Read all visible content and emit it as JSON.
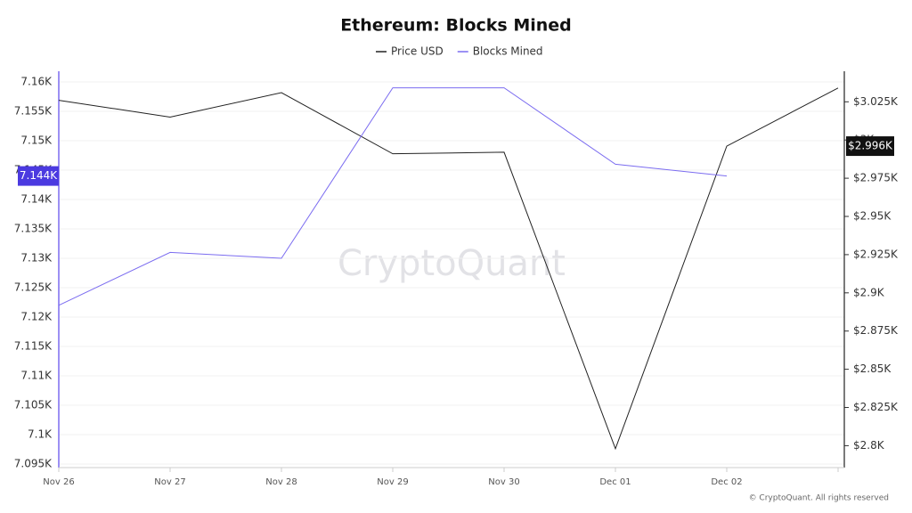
{
  "chart_data": {
    "type": "line",
    "title": "Ethereum: Blocks Mined",
    "categories": [
      "Nov 26",
      "Nov 27",
      "Nov 28",
      "Nov 29",
      "Nov 30",
      "Dec 01",
      "Dec 02",
      null
    ],
    "series": [
      {
        "name": "Price USD",
        "color": "#222222",
        "axis": "y2",
        "values": [
          3026,
          3015,
          3031,
          2991,
          2992,
          2798,
          2996,
          3034
        ]
      },
      {
        "name": "Blocks Mined",
        "color": "#7b6cf0",
        "values": [
          7122,
          7131,
          7130,
          7159,
          7159,
          7146,
          7144,
          null
        ]
      }
    ],
    "ylim": [
      7095,
      7160
    ],
    "yticks": [
      {
        "value": 7095,
        "label": "7.095K"
      },
      {
        "value": 7100,
        "label": "7.1K"
      },
      {
        "value": 7105,
        "label": "7.105K"
      },
      {
        "value": 7110,
        "label": "7.11K"
      },
      {
        "value": 7115,
        "label": "7.115K"
      },
      {
        "value": 7120,
        "label": "7.12K"
      },
      {
        "value": 7125,
        "label": "7.125K"
      },
      {
        "value": 7130,
        "label": "7.13K"
      },
      {
        "value": 7135,
        "label": "7.135K"
      },
      {
        "value": 7140,
        "label": "7.14K"
      },
      {
        "value": 7145,
        "label": "7.145K"
      },
      {
        "value": 7150,
        "label": "7.15K"
      },
      {
        "value": 7155,
        "label": "7.155K"
      },
      {
        "value": 7160,
        "label": "7.16K"
      }
    ],
    "y2lim": [
      2788,
      3038
    ],
    "y2ticks": [
      {
        "value": 2800,
        "label": "$2.8K"
      },
      {
        "value": 2825,
        "label": "$2.825K"
      },
      {
        "value": 2850,
        "label": "$2.85K"
      },
      {
        "value": 2875,
        "label": "$2.875K"
      },
      {
        "value": 2900,
        "label": "$2.9K"
      },
      {
        "value": 2925,
        "label": "$2.925K"
      },
      {
        "value": 2950,
        "label": "$2.95K"
      },
      {
        "value": 2975,
        "label": "$2.975K"
      },
      {
        "value": 3000,
        "label": "$3K"
      },
      {
        "value": 3025,
        "label": "$3.025K"
      }
    ],
    "grid": true,
    "annotations": [
      {
        "axis": "y",
        "value": 7144,
        "label": "7.144K",
        "color": "#4b3ae0"
      },
      {
        "axis": "y2",
        "value": 2996,
        "label": "$2.996K",
        "color": "#111111"
      }
    ],
    "watermark": "CryptoQuant",
    "copyright": "© CryptoQuant. All rights reserved"
  }
}
